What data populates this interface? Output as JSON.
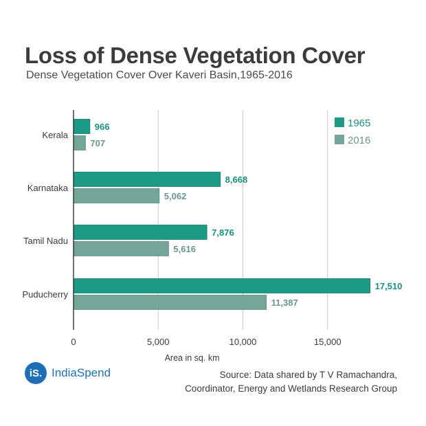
{
  "title": "Loss of Dense Vegetation Cover",
  "subtitle": "Dense Vegetation Cover Over Kaveri Basin,1965-2016",
  "chart_data": {
    "type": "bar",
    "orientation": "horizontal",
    "categories": [
      "Kerala",
      "Karnataka",
      "Tamil Nadu",
      "Puducherry"
    ],
    "series": [
      {
        "name": "1965",
        "color": "#1b9b86",
        "values": [
          966,
          8668,
          7876,
          17510
        ],
        "labels": [
          "966",
          "8,668",
          "7,876",
          "17,510"
        ]
      },
      {
        "name": "2016",
        "color": "#74a59a",
        "values": [
          707,
          5062,
          5616,
          11387
        ],
        "labels": [
          "707",
          "5,062",
          "5,616",
          "11,387"
        ]
      }
    ],
    "xlim": [
      0,
      20000
    ],
    "xticks": [
      0,
      5000,
      10000,
      15000
    ],
    "xtick_labels": [
      "0",
      "5,000",
      "10,000",
      "15,000"
    ],
    "xlabel": "Area in sq. km",
    "legend_position": "top-right",
    "grid": true
  },
  "brand": {
    "badge": "iS.",
    "name": "IndiaSpend",
    "color": "#1f6fb4"
  },
  "source": {
    "line1": "Source: Data shared by T V Ramachandra,",
    "line2": "Coordinator, Energy and Wetlands Research Group"
  }
}
